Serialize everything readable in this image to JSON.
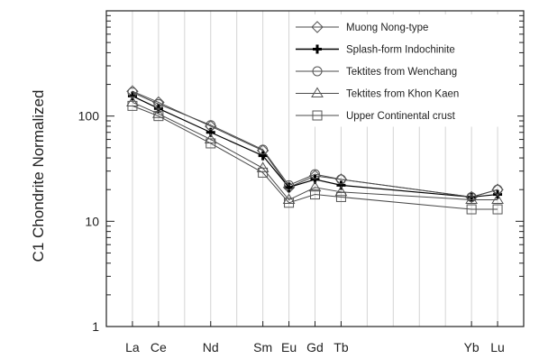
{
  "chart_data": {
    "type": "line",
    "title": "",
    "xlabel": "",
    "ylabel": "C1 Chondrite Normalized",
    "yscale": "log",
    "ylim": [
      1,
      1000
    ],
    "yticks": [
      {
        "value": 1,
        "label": "1"
      },
      {
        "value": 10,
        "label": "10"
      },
      {
        "value": 100,
        "label": "100"
      }
    ],
    "categories": [
      "La",
      "Ce",
      "Nd",
      "Sm",
      "Eu",
      "Gd",
      "Tb",
      "Yb",
      "Lu"
    ],
    "category_positions": [
      57,
      58,
      60,
      62,
      63,
      64,
      65,
      70,
      71
    ],
    "x_range": [
      56,
      72
    ],
    "grid": {
      "vertical": true,
      "horizontal": false
    },
    "legend_position": "top-right",
    "series": [
      {
        "name": "Muong Nong-type",
        "marker": "diamond",
        "color": "#555555",
        "values": [
          172,
          135,
          80,
          47,
          21,
          27,
          25,
          17,
          20
        ]
      },
      {
        "name": "Splash-form Indochinite",
        "marker": "plus",
        "color": "#000000",
        "values": [
          155,
          118,
          70,
          42,
          21,
          25,
          22,
          17,
          18
        ]
      },
      {
        "name": "Tektites from Wenchang",
        "marker": "circle",
        "color": "#555555",
        "values": [
          168,
          130,
          82,
          48,
          22,
          28,
          25,
          17,
          20
        ]
      },
      {
        "name": "Tektites from Khon Kaen",
        "marker": "triangle",
        "color": "#555555",
        "values": [
          135,
          105,
          60,
          32,
          16,
          21,
          19,
          16,
          16
        ]
      },
      {
        "name": "Upper Continental crust",
        "marker": "square",
        "color": "#555555",
        "values": [
          125,
          100,
          55,
          29,
          15,
          18,
          17,
          13,
          13
        ]
      }
    ]
  }
}
